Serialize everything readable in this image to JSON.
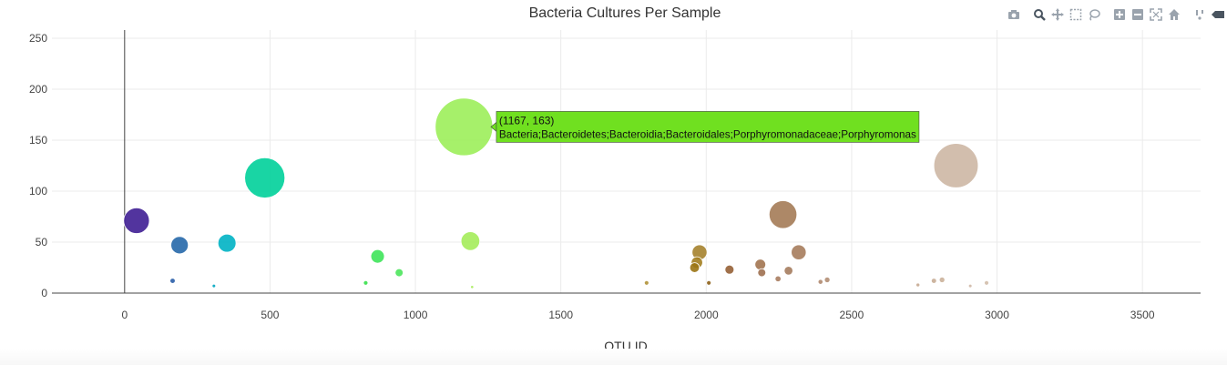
{
  "chart_data": {
    "type": "scatter",
    "title": "Bacteria Cultures Per Sample",
    "xlabel": "OTU ID",
    "ylabel": "",
    "xlim": [
      -250,
      3700
    ],
    "ylim": [
      0,
      258
    ],
    "xticks": [
      "0",
      "500",
      "1000",
      "1500",
      "2000",
      "2500",
      "3000",
      "3500"
    ],
    "yticks": [
      "0",
      "50",
      "100",
      "150",
      "200",
      "250"
    ],
    "grid": true,
    "legend": "none",
    "series": [
      {
        "points": [
          {
            "x": 41,
            "y": 71,
            "color": "#3f1e93"
          },
          {
            "x": 189,
            "y": 47,
            "color": "#2668aa"
          },
          {
            "x": 165,
            "y": 12,
            "color": "#2a5ea8"
          },
          {
            "x": 352,
            "y": 49,
            "color": "#00b2c4"
          },
          {
            "x": 307,
            "y": 7,
            "color": "#00a6c0"
          },
          {
            "x": 482,
            "y": 113,
            "color": "#00d09a"
          },
          {
            "x": 870,
            "y": 36,
            "color": "#3ee45a"
          },
          {
            "x": 944,
            "y": 20,
            "color": "#4ce55c"
          },
          {
            "x": 829,
            "y": 10,
            "color": "#36e04a"
          },
          {
            "x": 1167,
            "y": 163,
            "color": "#9cee5a"
          },
          {
            "x": 1189,
            "y": 51,
            "color": "#a4ec5a"
          },
          {
            "x": 1195,
            "y": 6,
            "color": "#a8ec5e"
          },
          {
            "x": 1795,
            "y": 10,
            "color": "#b09238"
          },
          {
            "x": 1977,
            "y": 40,
            "color": "#a5822e"
          },
          {
            "x": 1968,
            "y": 30,
            "color": "#a37e20"
          },
          {
            "x": 1960,
            "y": 25,
            "color": "#9b7414"
          },
          {
            "x": 2009,
            "y": 10,
            "color": "#8d6018"
          },
          {
            "x": 2080,
            "y": 23,
            "color": "#966036"
          },
          {
            "x": 2264,
            "y": 77,
            "color": "#a47b57"
          },
          {
            "x": 2318,
            "y": 40,
            "color": "#a67c5c"
          },
          {
            "x": 2186,
            "y": 28,
            "color": "#a27450"
          },
          {
            "x": 2191,
            "y": 20,
            "color": "#9f7050"
          },
          {
            "x": 2283,
            "y": 22,
            "color": "#a57c5e"
          },
          {
            "x": 2247,
            "y": 14,
            "color": "#a87d60"
          },
          {
            "x": 2393,
            "y": 11,
            "color": "#b08a70"
          },
          {
            "x": 2416,
            "y": 13,
            "color": "#b38e74"
          },
          {
            "x": 2859,
            "y": 125,
            "color": "#cdb7a4"
          },
          {
            "x": 2811,
            "y": 13,
            "color": "#cbb19a"
          },
          {
            "x": 2783,
            "y": 12,
            "color": "#c8ad96"
          },
          {
            "x": 2728,
            "y": 8,
            "color": "#c6aa92"
          },
          {
            "x": 2964,
            "y": 10,
            "color": "#d2bcaa"
          },
          {
            "x": 2908,
            "y": 7,
            "color": "#cfb8a6"
          }
        ]
      }
    ],
    "hover": {
      "x": 1167,
      "y": 163,
      "coords": "(1167, 163)",
      "label": "Bacteria;Bacteroidetes;Bacteroidia;Bacteroidales;Porphyromonadaceae;Porphyromonas",
      "bg": "#70e020"
    }
  },
  "modebar": {
    "icons": [
      "camera-icon",
      "zoom-icon",
      "pan-icon",
      "box-select-icon",
      "lasso-select-icon",
      "zoom-in-icon",
      "zoom-out-icon",
      "autoscale-icon",
      "reset-axes-icon",
      "spike-lines-icon",
      "hover-closest-icon"
    ]
  }
}
